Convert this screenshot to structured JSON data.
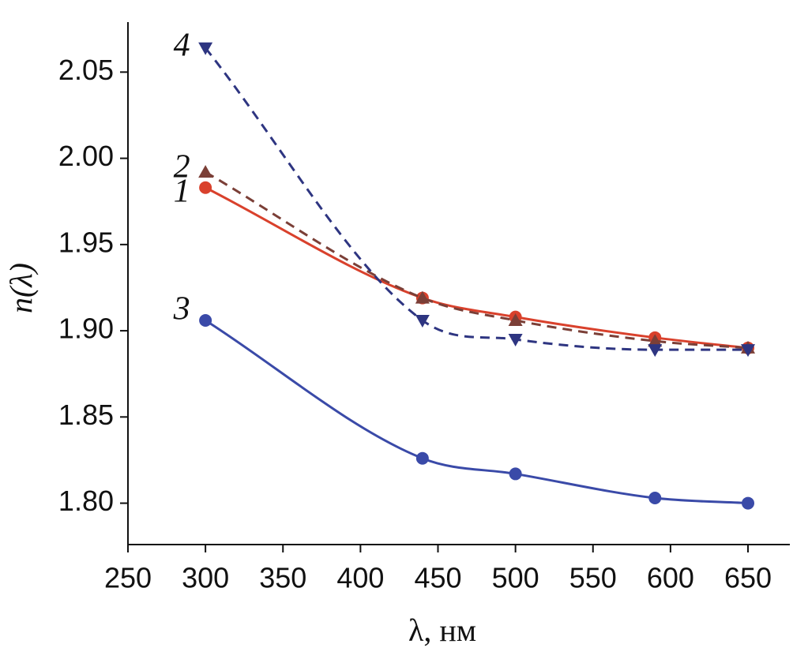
{
  "chart_data": {
    "type": "line",
    "x_label": "λ, нм",
    "y_label": "n(λ)",
    "xlim": [
      250,
      677
    ],
    "ylim": [
      1.776,
      2.079
    ],
    "xticks": [
      250,
      300,
      350,
      400,
      450,
      500,
      550,
      600,
      650
    ],
    "yticks": [
      {
        "value": 1.8,
        "label": "1.80"
      },
      1.85,
      {
        "value": 1.9,
        "label": "1.90"
      },
      1.95,
      {
        "value": 2.0,
        "label": "2.00"
      },
      2.05
    ],
    "x": [
      300,
      440,
      500,
      590,
      650
    ],
    "series": [
      {
        "name": "1",
        "color": "#d9412c",
        "dashed": false,
        "marker": "circle",
        "values": [
          1.983,
          1.919,
          1.908,
          1.896,
          1.89
        ]
      },
      {
        "name": "2",
        "color": "#7b3f37",
        "dashed": true,
        "marker": "triangle-up",
        "values": [
          1.992,
          1.919,
          1.906,
          1.894,
          1.89
        ]
      },
      {
        "name": "3",
        "color": "#3a4aa8",
        "dashed": false,
        "marker": "circle",
        "values": [
          1.906,
          1.826,
          1.817,
          1.803,
          1.8
        ]
      },
      {
        "name": "4",
        "color": "#2e3581",
        "dashed": true,
        "marker": "triangle-down",
        "values": [
          2.064,
          1.906,
          1.895,
          1.889,
          1.889
        ]
      }
    ]
  }
}
